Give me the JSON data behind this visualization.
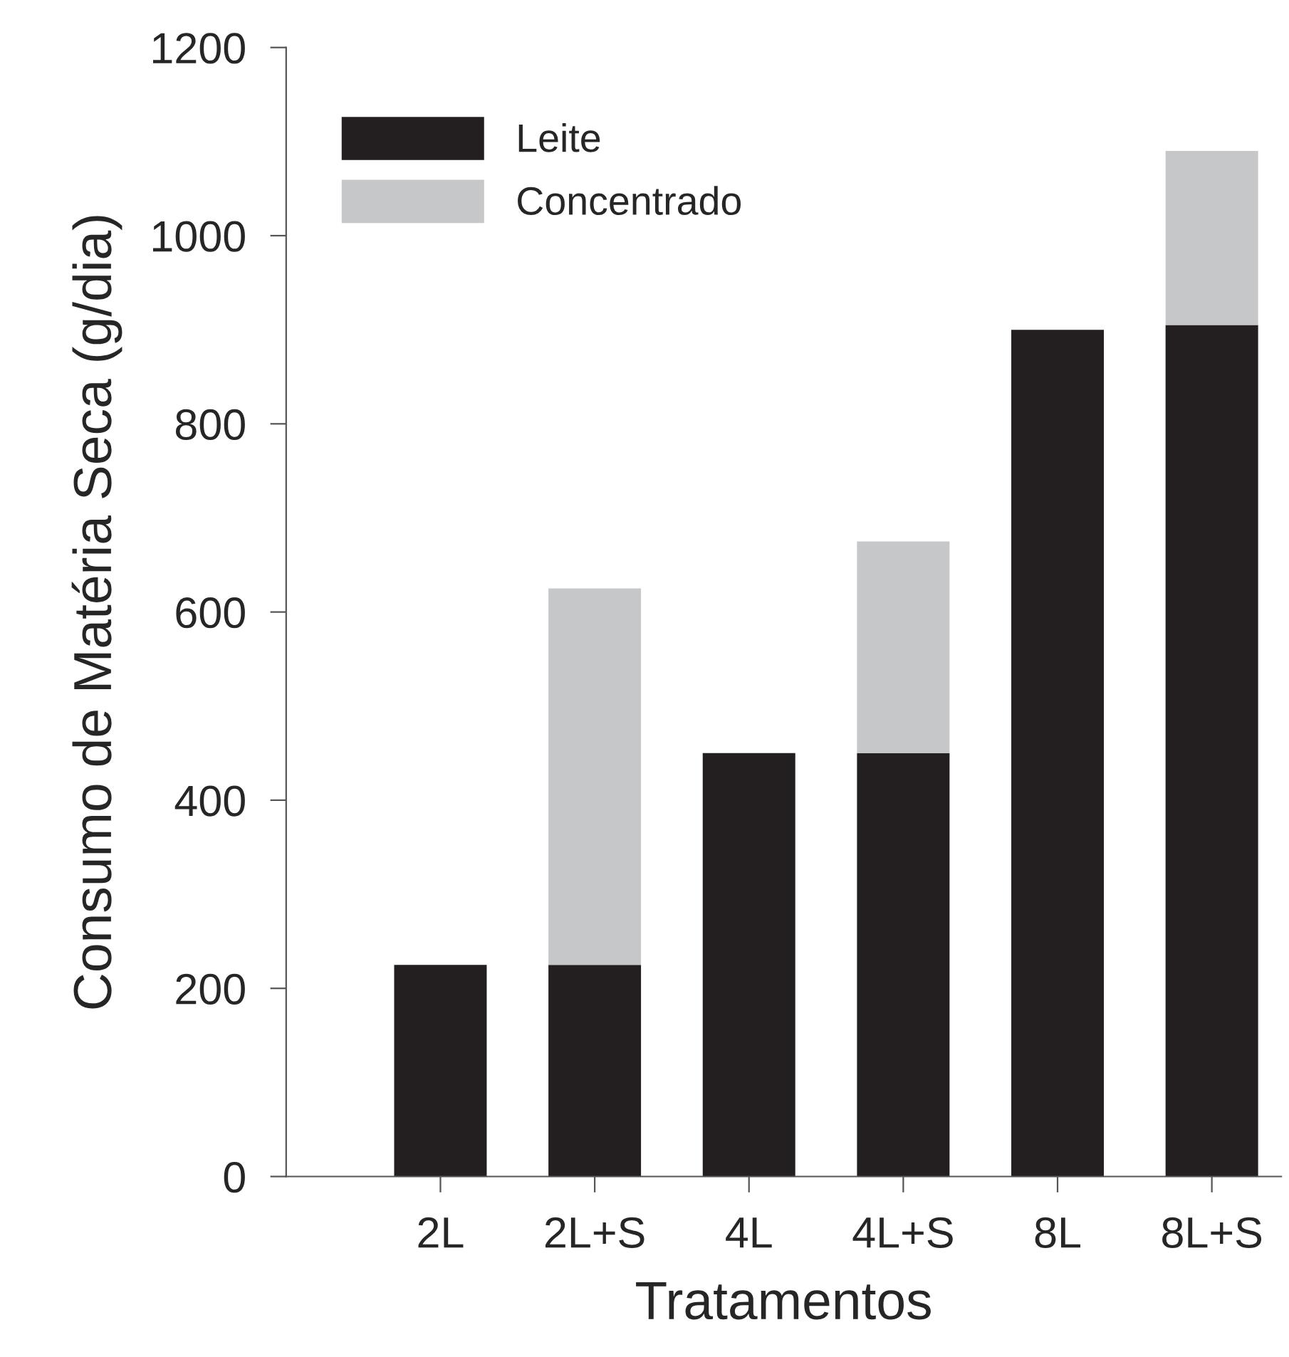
{
  "chart_data": {
    "type": "bar",
    "stacked": true,
    "xlabel": "Tratamentos",
    "ylabel": "Consumo de Matéria Seca (g/dia)",
    "categories": [
      "2L",
      "2L+S",
      "4L",
      "4L+S",
      "8L",
      "8L+S"
    ],
    "series": [
      {
        "name": "Leite",
        "color": "#231f20",
        "values": [
          225,
          225,
          450,
          450,
          900,
          905
        ]
      },
      {
        "name": "Concentrado",
        "color": "#c6c7c9",
        "values": [
          0,
          400,
          0,
          225,
          0,
          185
        ]
      }
    ],
    "ylim": [
      0,
      1200
    ],
    "yticks": [
      0,
      200,
      400,
      600,
      800,
      1000,
      1200
    ],
    "grid": false,
    "legend": "top left"
  }
}
